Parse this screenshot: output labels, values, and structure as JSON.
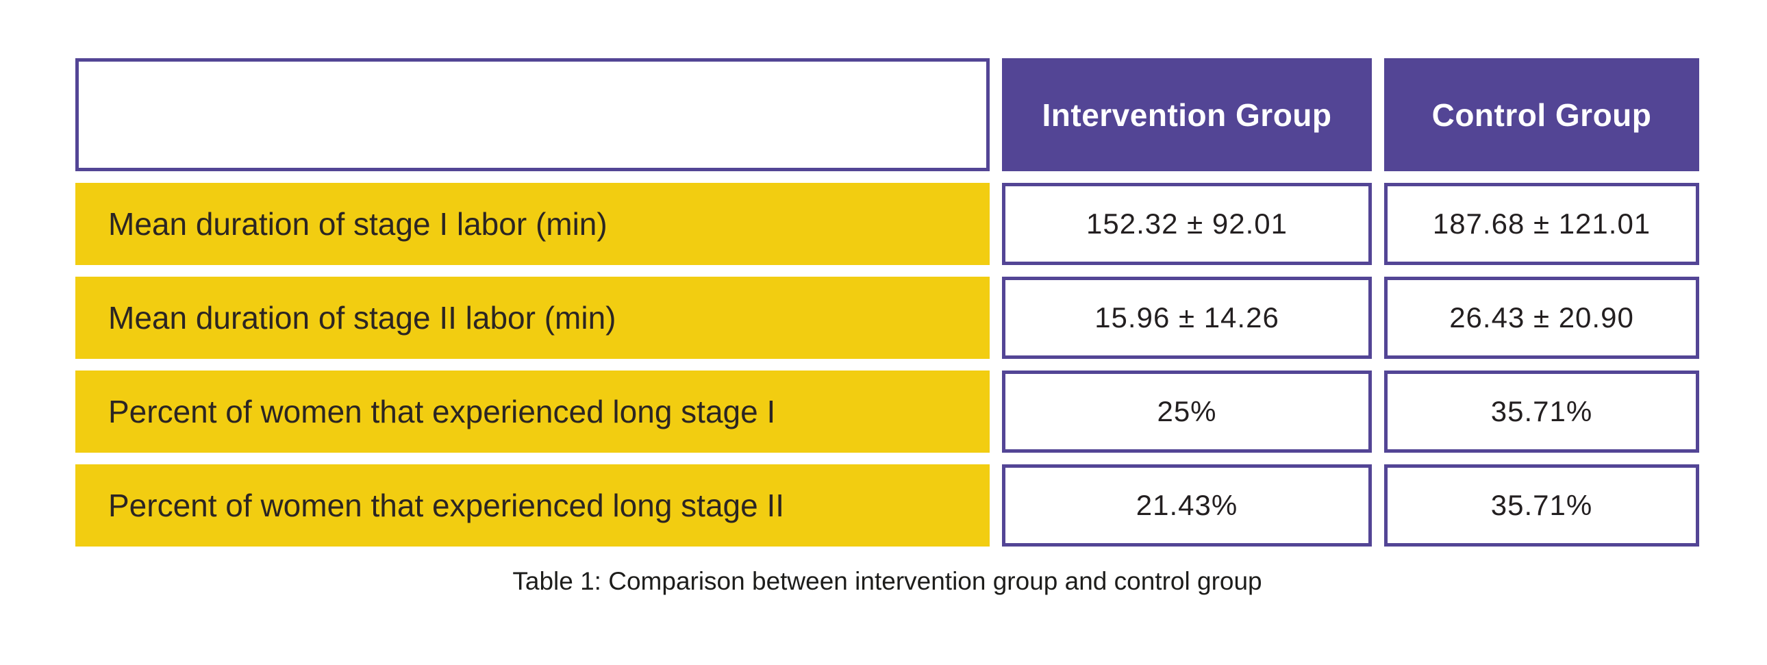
{
  "colors": {
    "header_purple": "#534595",
    "row_yellow": "#f2cd11",
    "cell_border_purple": "#534595",
    "header_text": "#ffffff",
    "body_text": "#231f20",
    "background": "#ffffff"
  },
  "table": {
    "headers": {
      "intervention": "Intervention Group",
      "control": "Control Group"
    },
    "rows": [
      {
        "label": "Mean duration of stage I labor (min)",
        "intervention": "152.32 ± 92.01",
        "control": "187.68 ± 121.01"
      },
      {
        "label": "Mean duration of stage II labor (min)",
        "intervention": "15.96 ± 14.26",
        "control": "26.43 ± 20.90"
      },
      {
        "label": "Percent of women that experienced long stage I",
        "intervention": "25%",
        "control": "35.71%"
      },
      {
        "label": "Percent of women that experienced long stage II",
        "intervention": "21.43%",
        "control": "35.71%"
      }
    ],
    "caption": "Table 1: Comparison between intervention group and control group"
  },
  "chart_data": {
    "type": "table",
    "title": "Table 1: Comparison between intervention group and control group",
    "columns": [
      "",
      "Intervention Group",
      "Control Group"
    ],
    "rows": [
      [
        "Mean duration of stage I labor (min)",
        "152.32 ± 92.01",
        "187.68 ± 121.01"
      ],
      [
        "Mean duration of stage II labor (min)",
        "15.96 ± 14.26",
        "26.43 ± 20.90"
      ],
      [
        "Percent of women that experienced long stage I",
        "25%",
        "35.71%"
      ],
      [
        "Percent of women that experienced long stage II",
        "21.43%",
        "35.71%"
      ]
    ],
    "numeric_values": {
      "mean_stage1_min": {
        "intervention": {
          "mean": 152.32,
          "sd": 92.01
        },
        "control": {
          "mean": 187.68,
          "sd": 121.01
        }
      },
      "mean_stage2_min": {
        "intervention": {
          "mean": 15.96,
          "sd": 14.26
        },
        "control": {
          "mean": 26.43,
          "sd": 20.9
        }
      },
      "pct_long_stage1": {
        "intervention": 25,
        "control": 35.71
      },
      "pct_long_stage2": {
        "intervention": 21.43,
        "control": 35.71
      }
    }
  }
}
